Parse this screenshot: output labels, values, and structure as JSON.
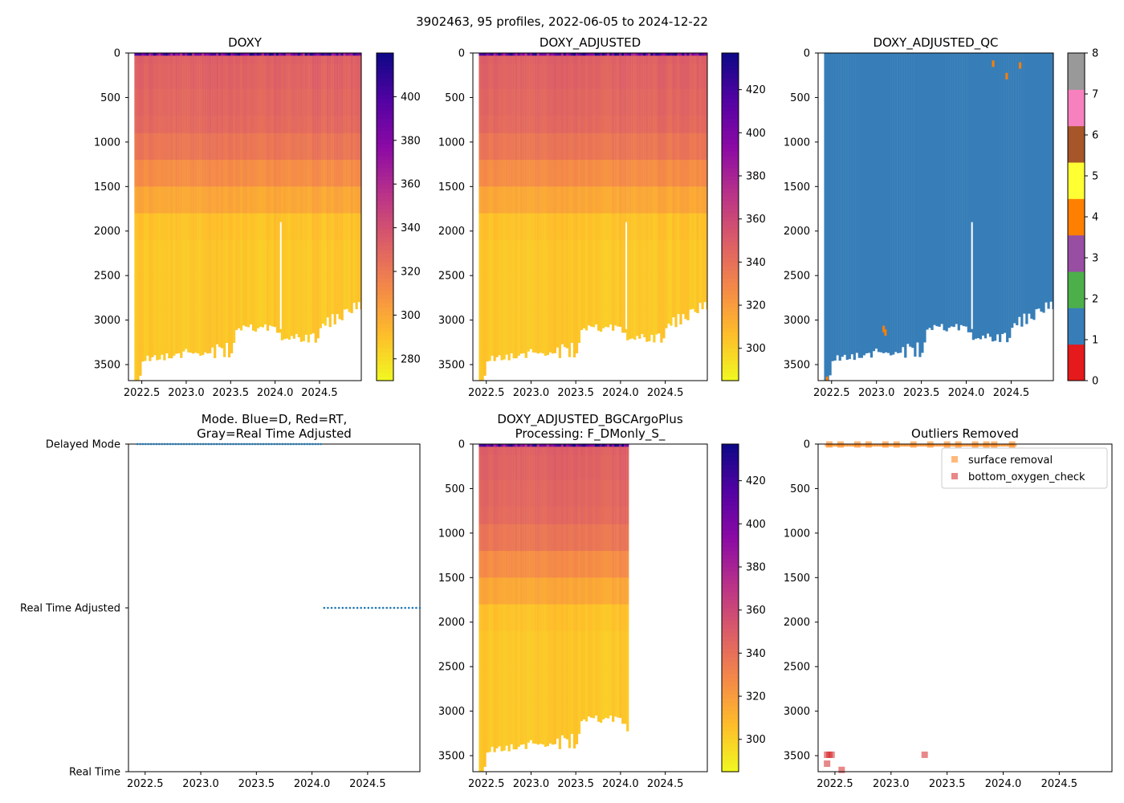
{
  "suptitle": "3902463, 95 profiles, 2022-06-05 to 2024-12-22",
  "colors": {
    "delayed": "#1f77b4",
    "surface_removal": "#ff7f0e",
    "bottom_oxygen_check": "#d62728",
    "qc_good": "#377eb8"
  },
  "chart_data": [
    {
      "id": "doxy",
      "type": "heatmap",
      "title": "DOXY",
      "xlim": [
        2022.35,
        2024.97
      ],
      "xticks": [
        "2022.5",
        "2023.0",
        "2023.5",
        "2024.0",
        "2024.5"
      ],
      "ylim": [
        3680,
        0
      ],
      "yticks": [
        "0",
        "500",
        "1000",
        "1500",
        "2000",
        "2500",
        "3000",
        "3500"
      ],
      "colormap": "plasma_r",
      "cbar_range": [
        270,
        420
      ],
      "cbar_ticks": [
        "280",
        "300",
        "320",
        "340",
        "360",
        "380",
        "400"
      ]
    },
    {
      "id": "doxy_adjusted",
      "type": "heatmap",
      "title": "DOXY_ADJUSTED",
      "xlim": [
        2022.35,
        2024.97
      ],
      "xticks": [
        "2022.5",
        "2023.0",
        "2023.5",
        "2024.0",
        "2024.5"
      ],
      "ylim": [
        3680,
        0
      ],
      "yticks": [
        "0",
        "500",
        "1000",
        "1500",
        "2000",
        "2500",
        "3000",
        "3500"
      ],
      "colormap": "plasma_r",
      "cbar_range": [
        285,
        437
      ],
      "cbar_ticks": [
        "300",
        "320",
        "340",
        "360",
        "380",
        "400",
        "420"
      ]
    },
    {
      "id": "doxy_adjusted_qc",
      "type": "heatmap",
      "title": "DOXY_ADJUSTED_QC",
      "xlim": [
        2022.35,
        2024.97
      ],
      "xticks": [
        "2022.5",
        "2023.0",
        "2023.5",
        "2024.0",
        "2024.5"
      ],
      "ylim": [
        3680,
        0
      ],
      "yticks": [
        "0",
        "500",
        "1000",
        "1500",
        "2000",
        "2500",
        "3000",
        "3500"
      ],
      "colormap": "qc_categorical",
      "cbar_range": [
        0,
        8
      ],
      "cbar_ticks": [
        "0",
        "1",
        "2",
        "3",
        "4",
        "5",
        "6",
        "7",
        "8"
      ],
      "qc_colors": [
        "#e41a1c",
        "#377eb8",
        "#4daf4a",
        "#984ea3",
        "#ff7f00",
        "#ffff33",
        "#a65628",
        "#f781bf",
        "#999999"
      ]
    },
    {
      "id": "mode",
      "type": "scatter",
      "title_lines": [
        "Mode. Blue=D, Red=RT,",
        "Gray=Real Time Adjusted"
      ],
      "xlim": [
        2022.35,
        2024.97
      ],
      "xticks": [
        "2022.5",
        "2023.0",
        "2023.5",
        "2024.0",
        "2024.5"
      ],
      "ylim": [
        0,
        2
      ],
      "ytick_labels": [
        "Real Time",
        "Real Time Adjusted",
        "Delayed Mode"
      ],
      "series": [
        {
          "name": "Delayed Mode",
          "y": 2,
          "x_start": 2022.43,
          "x_end": 2024.08,
          "count": 68
        },
        {
          "name": "Real Time Adjusted",
          "y": 1,
          "x_start": 2024.11,
          "x_end": 2024.97,
          "count": 27
        }
      ]
    },
    {
      "id": "bgc_plus",
      "type": "heatmap",
      "title_lines": [
        "DOXY_ADJUSTED_BGCArgoPlus",
        "Processing: F_DMonly_S_"
      ],
      "xlim": [
        2022.35,
        2024.97
      ],
      "xticks": [
        "2022.5",
        "2023.0",
        "2023.5",
        "2024.0",
        "2024.5"
      ],
      "ylim": [
        3680,
        0
      ],
      "yticks": [
        "0",
        "500",
        "1000",
        "1500",
        "2000",
        "2500",
        "3000",
        "3500"
      ],
      "colormap": "plasma_r",
      "cbar_range": [
        285,
        437
      ],
      "cbar_ticks": [
        "300",
        "320",
        "340",
        "360",
        "380",
        "400",
        "420"
      ],
      "data_x_end": 2024.1
    },
    {
      "id": "outliers",
      "type": "scatter",
      "title": "Outliers Removed",
      "xlim": [
        2022.35,
        2024.97
      ],
      "xticks": [
        "2022.5",
        "2023.0",
        "2023.5",
        "2024.0",
        "2024.5"
      ],
      "ylim": [
        3680,
        0
      ],
      "yticks": [
        "0",
        "500",
        "1000",
        "1500",
        "2000",
        "2500",
        "3000",
        "3500"
      ],
      "legend_position": "upper-right",
      "series": [
        {
          "name": "surface removal",
          "x": [
            2022.45,
            2022.55,
            2022.7,
            2022.8,
            2022.95,
            2023.05,
            2023.2,
            2023.35,
            2023.5,
            2023.6,
            2023.75,
            2023.85,
            2023.92,
            2024.08
          ],
          "y": [
            5,
            5,
            5,
            5,
            5,
            5,
            5,
            5,
            5,
            5,
            5,
            5,
            5,
            5
          ]
        },
        {
          "name": "bottom_oxygen_check",
          "x": [
            2022.43,
            2022.45,
            2022.47,
            2022.43,
            2022.56,
            2023.3
          ],
          "y": [
            3490,
            3490,
            3490,
            3590,
            3660,
            3490
          ]
        }
      ]
    }
  ]
}
